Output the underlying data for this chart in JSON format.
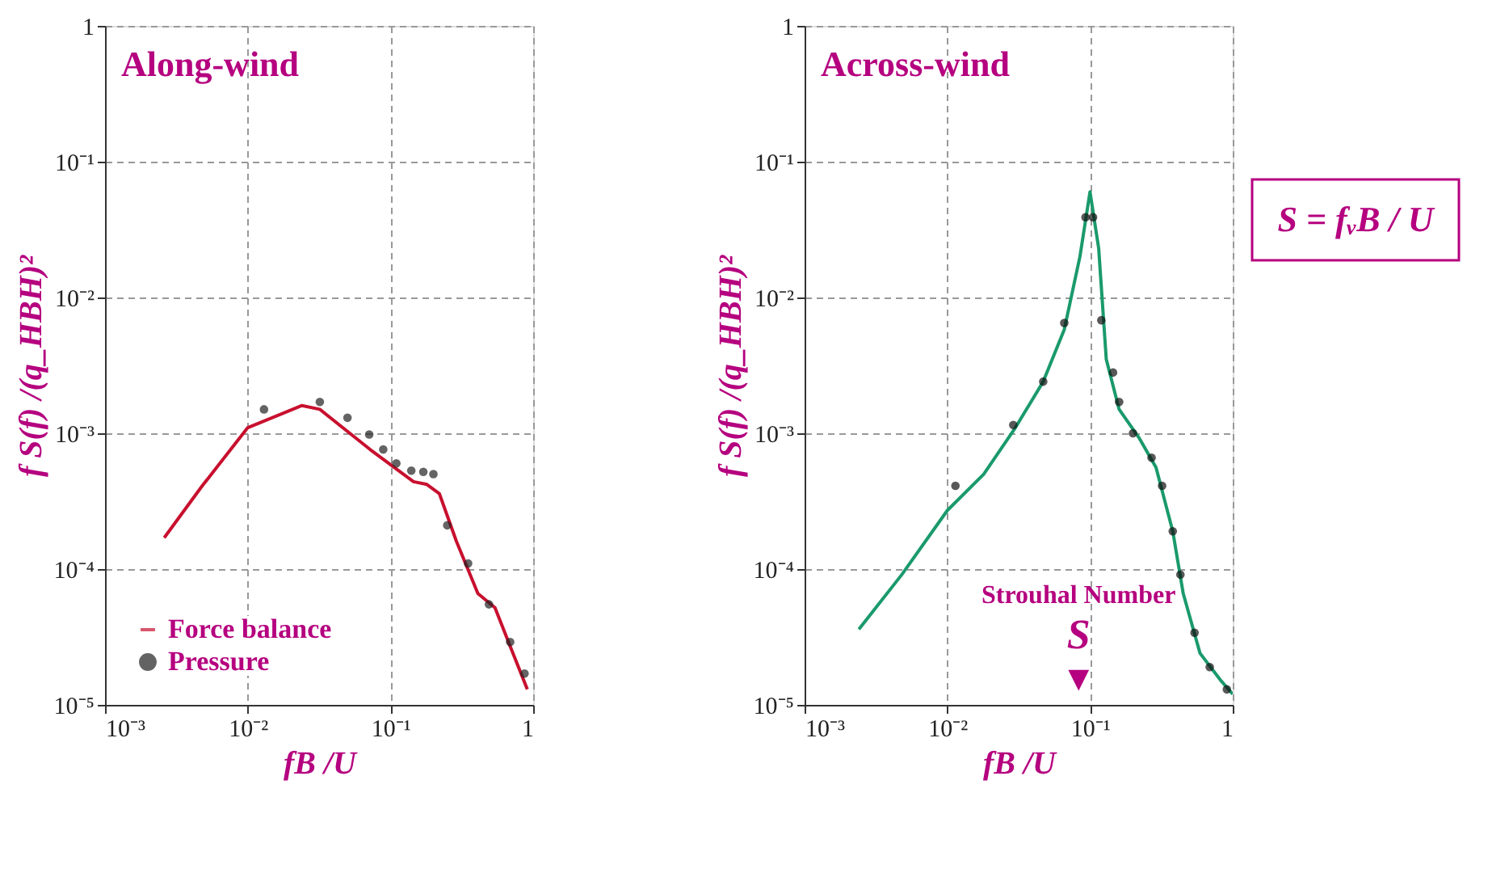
{
  "chart_data": [
    {
      "type": "line",
      "title": "Along-wind",
      "xlabel": "fB /U",
      "ylabel": "f S(f) /(q_HBH)²",
      "xlim": [
        0.001,
        1
      ],
      "ylim": [
        1e-05,
        1
      ],
      "log": "xy",
      "grid": true,
      "legend": "bottom left",
      "line_style": "solid",
      "xticks": [
        {
          "value": 0.001,
          "label": "10⁻³"
        },
        {
          "value": 0.01,
          "label": "10⁻²"
        },
        {
          "value": 0.1,
          "label": "10⁻¹"
        },
        1
      ],
      "yticks": [
        {
          "value": 1e-05,
          "label": "10⁻⁵"
        },
        {
          "value": 0.0001,
          "label": "10⁻⁴"
        },
        {
          "value": 0.001,
          "label": "10⁻³"
        },
        {
          "value": 0.01,
          "label": "10⁻²"
        },
        {
          "value": 0.1,
          "label": "10⁻¹"
        },
        1
      ],
      "series": [
        {
          "name": "Force balance",
          "type": "line",
          "color": "#c8102e",
          "x": [
            0.0026,
            0.0048,
            0.01,
            0.024,
            0.032,
            0.072,
            0.145,
            0.18,
            0.22,
            0.29,
            0.41,
            0.54,
            0.7,
            0.91
          ],
          "values": [
            0.00017,
            0.00041,
            0.0011,
            0.0016,
            0.0015,
            0.00076,
            0.00044,
            0.00042,
            0.00036,
            0.00016,
            6.6e-05,
            5.2e-05,
            2.6e-05,
            1.3e-05
          ]
        },
        {
          "name": "Pressure",
          "type": "scatter",
          "marker": "circle",
          "color": "#222222",
          "x": [
            0.013,
            0.032,
            0.05,
            0.071,
            0.089,
            0.11,
            0.14,
            0.17,
            0.2,
            0.25,
            0.35,
            0.49,
            0.69,
            0.87
          ],
          "values": [
            0.0015,
            0.0017,
            0.0013,
            0.00098,
            0.00076,
            0.0006,
            0.00053,
            0.00052,
            0.0005,
            0.00021,
            0.00011,
            5.5e-05,
            2.9e-05,
            1.7e-05
          ]
        }
      ]
    },
    {
      "type": "line",
      "title": "Across-wind",
      "xlabel": "fB /U",
      "ylabel": "f S(f) /(q_HBH)²",
      "xlim": [
        0.001,
        1
      ],
      "ylim": [
        1e-05,
        1
      ],
      "log": "xy",
      "grid": true,
      "line_style": "solid",
      "xticks": [
        {
          "value": 0.001,
          "label": "10⁻³"
        },
        {
          "value": 0.01,
          "label": "10⁻²"
        },
        {
          "value": 0.1,
          "label": "10⁻¹"
        },
        1
      ],
      "yticks": [
        {
          "value": 1e-05,
          "label": "10⁻⁵"
        },
        {
          "value": 0.0001,
          "label": "10⁻⁴"
        },
        {
          "value": 0.001,
          "label": "10⁻³"
        },
        {
          "value": 0.01,
          "label": "10⁻²"
        },
        {
          "value": 0.1,
          "label": "10⁻¹"
        },
        1
      ],
      "annotations": [
        "S = fᵥB / U",
        "Strouhal Number",
        "S",
        "▼"
      ],
      "series": [
        {
          "type": "line",
          "color": "#1a9a6c",
          "x": [
            0.0024,
            0.0048,
            0.01,
            0.018,
            0.03,
            0.047,
            0.066,
            0.085,
            0.1,
            0.115,
            0.13,
            0.16,
            0.22,
            0.29,
            0.38,
            0.45,
            0.59,
            0.83,
            1.0
          ],
          "values": [
            3.6e-05,
            9.1e-05,
            0.00027,
            0.0005,
            0.0011,
            0.0024,
            0.0058,
            0.02,
            0.06,
            0.023,
            0.0035,
            0.0015,
            0.00093,
            0.00056,
            0.00019,
            6.6e-05,
            2.4e-05,
            1.5e-05,
            1.2e-05
          ]
        },
        {
          "type": "scatter",
          "marker": "circle",
          "color": "#111111",
          "x": [
            0.0114,
            0.029,
            0.047,
            0.066,
            0.093,
            0.105,
            0.12,
            0.145,
            0.16,
            0.2,
            0.27,
            0.32,
            0.38,
            0.43,
            0.54,
            0.69,
            0.91
          ],
          "values": [
            0.00041,
            0.00115,
            0.0024,
            0.0065,
            0.039,
            0.039,
            0.0068,
            0.0028,
            0.0017,
            0.001,
            0.00066,
            0.00041,
            0.00019,
            9.1e-05,
            3.4e-05,
            1.9e-05,
            1.3e-05
          ]
        }
      ]
    }
  ]
}
